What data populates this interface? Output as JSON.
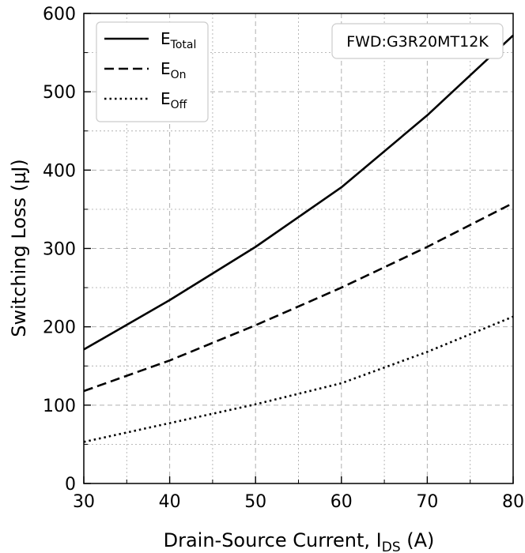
{
  "chart_data": {
    "type": "line",
    "xlabel": {
      "main": "Drain-Source Current, I",
      "sub": "DS",
      "tail": " (A)"
    },
    "ylabel": "Switching Loss (µJ)",
    "xlim": [
      30,
      80
    ],
    "ylim": [
      0,
      600
    ],
    "xticks": [
      30,
      40,
      50,
      60,
      70,
      80
    ],
    "yticks": [
      0,
      100,
      200,
      300,
      400,
      500,
      600
    ],
    "x_minor_step": 5,
    "y_minor_step": 50,
    "grid": true,
    "legend_position": "top-left",
    "annotation": "FWD:G3R20MT12K",
    "x": [
      30,
      40,
      50,
      60,
      70,
      80
    ],
    "series": [
      {
        "main": "E",
        "sub": "Total",
        "style": "solid",
        "values": [
          171,
          234,
          302,
          378,
          470,
          572
        ]
      },
      {
        "main": "E",
        "sub": "On",
        "style": "dashed",
        "values": [
          118,
          157,
          202,
          250,
          302,
          358
        ]
      },
      {
        "main": "E",
        "sub": "Off",
        "style": "dotted",
        "values": [
          53,
          77,
          101,
          128,
          168,
          213
        ]
      }
    ],
    "colors": {
      "line": "#000000",
      "grid": "#b0b0b0"
    }
  }
}
